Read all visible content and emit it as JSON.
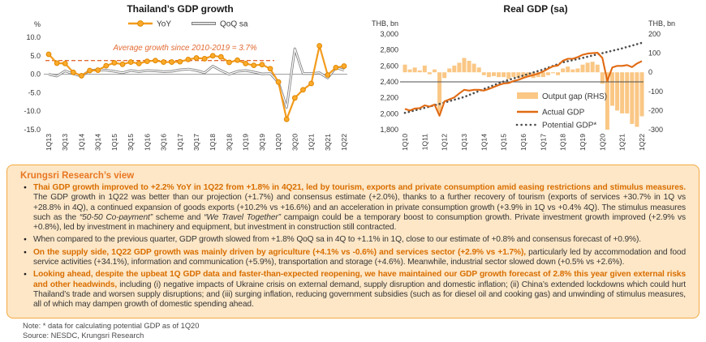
{
  "chart_data": [
    {
      "type": "line",
      "title": "Thailand’s GDP growth",
      "y_unit": "%",
      "ylim": [
        -15,
        10
      ],
      "y_ticks": [
        "10.0",
        "5.0",
        "0.0",
        "-5.0",
        "-10.0",
        "-15.0"
      ],
      "y_tick_values": [
        10,
        5,
        0,
        -5,
        -10,
        -15
      ],
      "categories": [
        "1Q13",
        "2Q13",
        "3Q13",
        "4Q13",
        "1Q14",
        "2Q14",
        "3Q14",
        "4Q14",
        "1Q15",
        "2Q15",
        "3Q15",
        "4Q15",
        "1Q16",
        "2Q16",
        "3Q16",
        "4Q16",
        "1Q17",
        "2Q17",
        "3Q17",
        "4Q17",
        "1Q18",
        "2Q18",
        "3Q18",
        "4Q18",
        "1Q19",
        "2Q19",
        "3Q19",
        "4Q19",
        "1Q20",
        "2Q20",
        "3Q20",
        "4Q20",
        "1Q21",
        "2Q21",
        "3Q21",
        "4Q21",
        "1Q22"
      ],
      "x_tick_labels": [
        "1Q13",
        "3Q13",
        "1Q14",
        "3Q14",
        "1Q15",
        "3Q15",
        "1Q16",
        "3Q16",
        "1Q17",
        "3Q17",
        "1Q18",
        "3Q18",
        "1Q19",
        "3Q19",
        "1Q20",
        "3Q20",
        "1Q21",
        "3Q21",
        "1Q22"
      ],
      "series": [
        {
          "name": "YoY",
          "color": "#F39B1C",
          "values": [
            5.4,
            3.0,
            2.9,
            0.5,
            -0.4,
            1.0,
            1.1,
            2.3,
            3.1,
            2.7,
            3.3,
            2.9,
            3.5,
            3.7,
            3.3,
            3.3,
            3.4,
            4.0,
            4.4,
            4.2,
            5.0,
            4.7,
            3.2,
            3.8,
            2.9,
            2.4,
            2.6,
            1.5,
            -2.1,
            -12.2,
            -6.4,
            -4.2,
            -2.5,
            7.7,
            -0.2,
            1.8,
            2.2
          ]
        },
        {
          "name": "QoQ sa",
          "color": "#7F7F7F",
          "values": [
            0.0,
            -0.5,
            0.9,
            0.1,
            -0.5,
            1.0,
            1.2,
            1.1,
            0.8,
            0.4,
            1.0,
            0.7,
            1.0,
            0.9,
            0.7,
            0.8,
            1.2,
            1.4,
            1.0,
            0.4,
            2.2,
            1.0,
            0.0,
            0.8,
            1.0,
            0.6,
            0.1,
            0.2,
            -2.2,
            -9.0,
            6.9,
            0.2,
            0.2,
            0.4,
            -1.0,
            1.8,
            1.1
          ]
        }
      ],
      "annotation": {
        "text": "Average growth since 2010-2019 = 3.7%",
        "value": 3.7,
        "color": "#E26B34"
      },
      "legend_position": "top",
      "grid": false
    },
    {
      "type": "combo",
      "title": "Real GDP (sa)",
      "left_axis": {
        "unit": "THB, bn",
        "min": 1800,
        "max": 3000,
        "ticks": [
          "3,000",
          "2,800",
          "2,600",
          "2,400",
          "2,200",
          "2,000",
          "1,800"
        ],
        "tick_values": [
          3000,
          2800,
          2600,
          2400,
          2200,
          2000,
          1800
        ]
      },
      "right_axis": {
        "unit": "THB, bn",
        "min": -300,
        "max": 200,
        "ticks": [
          "200",
          "100",
          "0",
          "-100",
          "-200",
          "-300"
        ],
        "tick_values": [
          200,
          100,
          0,
          -100,
          -200,
          -300
        ]
      },
      "categories": [
        "1Q10",
        "2Q10",
        "3Q10",
        "4Q10",
        "1Q11",
        "2Q11",
        "3Q11",
        "4Q11",
        "1Q12",
        "2Q12",
        "3Q12",
        "4Q12",
        "1Q13",
        "2Q13",
        "3Q13",
        "4Q13",
        "1Q14",
        "2Q14",
        "3Q14",
        "4Q14",
        "1Q15",
        "2Q15",
        "3Q15",
        "4Q15",
        "1Q16",
        "2Q16",
        "3Q16",
        "4Q16",
        "1Q17",
        "2Q17",
        "3Q17",
        "4Q17",
        "1Q18",
        "2Q18",
        "3Q18",
        "4Q18",
        "1Q19",
        "2Q19",
        "3Q19",
        "4Q19",
        "1Q20",
        "2Q20",
        "3Q20",
        "4Q20",
        "1Q21",
        "2Q21",
        "3Q21",
        "4Q21",
        "1Q22"
      ],
      "x_tick_labels": [
        "1Q10",
        "1Q11",
        "1Q12",
        "1Q13",
        "1Q14",
        "1Q15",
        "1Q16",
        "1Q17",
        "1Q18",
        "1Q19",
        "1Q20",
        "1Q21",
        "1Q22"
      ],
      "bar_series": {
        "name": "Output gap (RHS)",
        "axis": "right",
        "color": "#FAC785",
        "values": [
          40,
          15,
          25,
          10,
          35,
          -10,
          15,
          -210,
          -30,
          20,
          35,
          50,
          75,
          60,
          45,
          25,
          -15,
          -25,
          -20,
          -25,
          -25,
          -35,
          -25,
          -30,
          -30,
          -25,
          -30,
          -25,
          -25,
          -15,
          -5,
          -15,
          20,
          30,
          15,
          20,
          40,
          50,
          55,
          40,
          -60,
          -300,
          -175,
          -200,
          -215,
          -215,
          -270,
          -285,
          -230
        ]
      },
      "line_series": [
        {
          "name": "Actual GDP",
          "axis": "left",
          "color": "#E16A12",
          "style": "solid",
          "values": [
            2060,
            2040,
            2065,
            2070,
            2105,
            2090,
            2115,
            1975,
            2155,
            2180,
            2205,
            2255,
            2300,
            2290,
            2300,
            2300,
            2290,
            2310,
            2335,
            2360,
            2380,
            2385,
            2410,
            2425,
            2450,
            2470,
            2485,
            2505,
            2530,
            2565,
            2595,
            2605,
            2665,
            2690,
            2690,
            2710,
            2740,
            2755,
            2760,
            2765,
            2700,
            2410,
            2580,
            2600,
            2600,
            2610,
            2585,
            2630,
            2660
          ]
        },
        {
          "name": "Potential GDP*",
          "axis": "left",
          "color": "#4D4D4D",
          "style": "dotted",
          "values": [
            2010,
            2026,
            2042,
            2058,
            2074,
            2090,
            2106,
            2122,
            2140,
            2158,
            2175,
            2193,
            2210,
            2235,
            2260,
            2285,
            2310,
            2334,
            2358,
            2382,
            2405,
            2424,
            2443,
            2461,
            2480,
            2499,
            2518,
            2536,
            2555,
            2578,
            2600,
            2623,
            2645,
            2659,
            2673,
            2687,
            2700,
            2715,
            2730,
            2745,
            2760,
            2775,
            2790,
            2805,
            2820,
            2838,
            2855,
            2873,
            2890
          ]
        }
      ],
      "reference_line": {
        "axis": "left",
        "value": 2400,
        "color": "#4d4d4d"
      },
      "legend_position": "inside-bottom-center"
    }
  ],
  "view": {
    "title": "Krungsri Research’s view",
    "colors": {
      "box_bg": "#FDE7C7",
      "box_border": "#F4A940",
      "title": "#E87722",
      "strong_text": "#D96E00"
    },
    "bullets": [
      {
        "segments": [
          {
            "style": "strong",
            "text": "Thai GDP growth improved to +2.2% YoY in 1Q22 from +1.8% in 4Q21, led by tourism, exports and private consumption amid easing restrictions and stimulus measures. "
          },
          {
            "style": "normal",
            "text": "The GDP growth in 1Q22 was better than our projection (+1.7%) and consensus estimate (+2.0%), thanks to a further recovery of tourism (exports of services +30.7% in 1Q vs +28.8% in 4Q), a continued expansion of goods exports (+10.2% vs +16.6%) and an acceleration in private consumption growth (+3.9% in 1Q vs +0.4% 4Q). The stimulus measures such as the "
          },
          {
            "style": "italic",
            "text": "“50-50 Co-payment”"
          },
          {
            "style": "normal",
            "text": " scheme and "
          },
          {
            "style": "italic",
            "text": "“We Travel Together”"
          },
          {
            "style": "normal",
            "text": " campaign could be a temporary boost to consumption growth. Private investment growth improved (+2.9% vs +0.8%), led by investment in machinery and equipment, but investment in construction still contracted."
          }
        ]
      },
      {
        "segments": [
          {
            "style": "normal",
            "text": "When compared to the previous quarter, GDP growth slowed from +1.8% QoQ sa in 4Q to +1.1% in 1Q, close to our estimate of +0.8% and consensus forecast of +0.9%)."
          }
        ]
      },
      {
        "segments": [
          {
            "style": "strong",
            "text": "On the supply side, 1Q22 GDP growth was mainly driven by agriculture (+4.1% vs -0.6%) and services sector (+2.9% vs +1.7%), "
          },
          {
            "style": "normal",
            "text": "particularly led by accommodation and food service activities (+34.1%), information and communication (+5.9%), transportation and storage (+4.6%). Meanwhile, industrial sector slowed down (+0.5% vs +2.6%)."
          }
        ]
      },
      {
        "segments": [
          {
            "style": "strong",
            "text": "Looking ahead, despite the upbeat 1Q GDP data and faster-than-expected reopening, we have maintained our GDP growth forecast of 2.8% this year given external risks and other headwinds, "
          },
          {
            "style": "normal",
            "text": "including (i) negative impacts of Ukraine crisis on external demand, supply disruption and domestic inflation; (ii) China’s extended lockdowns which could hurt Thailand’s trade and worsen supply disruptions; and (iii) surging inflation, reducing government subsidies (such as for diesel oil and cooking gas) and unwinding of stimulus measures, all of which may dampen growth of domestic spending ahead."
          }
        ]
      }
    ]
  },
  "footer": {
    "note": "Note: * data for calculating potential GDP as of 1Q20",
    "source": "Source: NESDC, Krungsri Research"
  }
}
